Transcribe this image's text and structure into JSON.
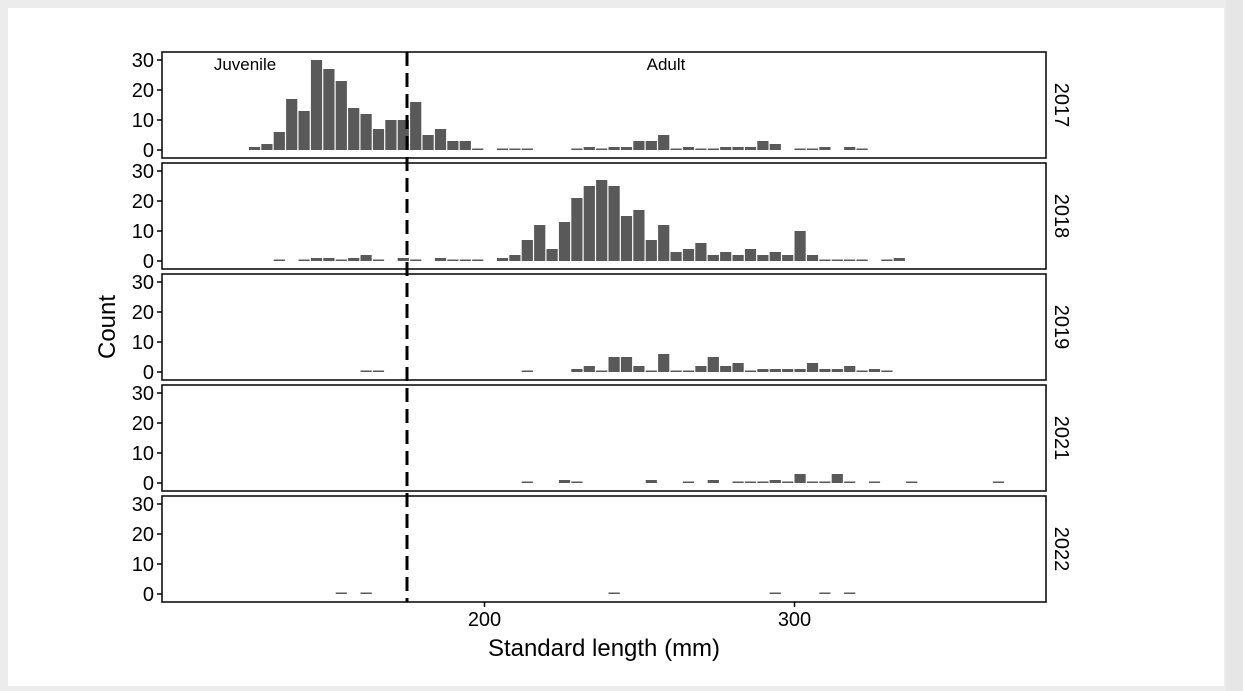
{
  "chart_data": {
    "type": "bar",
    "xlabel": "Standard length (mm)",
    "ylabel": "Count",
    "xlim": [
      100,
      380
    ],
    "ylim": [
      0,
      32
    ],
    "x_ticks": [
      200,
      300
    ],
    "y_ticks": [
      0,
      10,
      20,
      30
    ],
    "bin_width": 4,
    "threshold": 175,
    "region_labels": [
      "Juvenile",
      "Adult"
    ],
    "bar_color": "#595959",
    "grid": false,
    "panels": [
      {
        "name": "2017",
        "bars": [
          {
            "x": 126,
            "y": 1
          },
          {
            "x": 130,
            "y": 2
          },
          {
            "x": 134,
            "y": 6
          },
          {
            "x": 138,
            "y": 17
          },
          {
            "x": 142,
            "y": 13
          },
          {
            "x": 146,
            "y": 30
          },
          {
            "x": 150,
            "y": 27
          },
          {
            "x": 154,
            "y": 23
          },
          {
            "x": 158,
            "y": 14
          },
          {
            "x": 162,
            "y": 12
          },
          {
            "x": 166,
            "y": 7
          },
          {
            "x": 170,
            "y": 10
          },
          {
            "x": 174,
            "y": 10
          },
          {
            "x": 178,
            "y": 16
          },
          {
            "x": 182,
            "y": 5
          },
          {
            "x": 186,
            "y": 7
          },
          {
            "x": 190,
            "y": 3
          },
          {
            "x": 194,
            "y": 3
          },
          {
            "x": 198,
            "y": 0
          },
          {
            "x": 206,
            "y": 0
          },
          {
            "x": 210,
            "y": 0
          },
          {
            "x": 214,
            "y": 0
          },
          {
            "x": 230,
            "y": 0
          },
          {
            "x": 234,
            "y": 1
          },
          {
            "x": 238,
            "y": 0
          },
          {
            "x": 242,
            "y": 1
          },
          {
            "x": 246,
            "y": 1
          },
          {
            "x": 250,
            "y": 3
          },
          {
            "x": 254,
            "y": 3
          },
          {
            "x": 258,
            "y": 5
          },
          {
            "x": 262,
            "y": 0
          },
          {
            "x": 266,
            "y": 1
          },
          {
            "x": 270,
            "y": 0
          },
          {
            "x": 274,
            "y": 0
          },
          {
            "x": 278,
            "y": 1
          },
          {
            "x": 282,
            "y": 1
          },
          {
            "x": 286,
            "y": 1
          },
          {
            "x": 290,
            "y": 3
          },
          {
            "x": 294,
            "y": 2
          },
          {
            "x": 302,
            "y": 0
          },
          {
            "x": 306,
            "y": 0
          },
          {
            "x": 310,
            "y": 1
          },
          {
            "x": 318,
            "y": 1
          },
          {
            "x": 322,
            "y": 0
          }
        ]
      },
      {
        "name": "2018",
        "bars": [
          {
            "x": 134,
            "y": 0
          },
          {
            "x": 142,
            "y": 0
          },
          {
            "x": 146,
            "y": 1
          },
          {
            "x": 150,
            "y": 1
          },
          {
            "x": 154,
            "y": 0
          },
          {
            "x": 158,
            "y": 1
          },
          {
            "x": 162,
            "y": 2
          },
          {
            "x": 166,
            "y": 0
          },
          {
            "x": 174,
            "y": 1
          },
          {
            "x": 178,
            "y": 0
          },
          {
            "x": 186,
            "y": 1
          },
          {
            "x": 190,
            "y": 0
          },
          {
            "x": 194,
            "y": 0
          },
          {
            "x": 198,
            "y": 0
          },
          {
            "x": 206,
            "y": 1
          },
          {
            "x": 210,
            "y": 2
          },
          {
            "x": 214,
            "y": 7
          },
          {
            "x": 218,
            "y": 12
          },
          {
            "x": 222,
            "y": 4
          },
          {
            "x": 226,
            "y": 13
          },
          {
            "x": 230,
            "y": 21
          },
          {
            "x": 234,
            "y": 25
          },
          {
            "x": 238,
            "y": 27
          },
          {
            "x": 242,
            "y": 25
          },
          {
            "x": 246,
            "y": 15
          },
          {
            "x": 250,
            "y": 17
          },
          {
            "x": 254,
            "y": 7
          },
          {
            "x": 258,
            "y": 12
          },
          {
            "x": 262,
            "y": 3
          },
          {
            "x": 266,
            "y": 4
          },
          {
            "x": 270,
            "y": 6
          },
          {
            "x": 274,
            "y": 2
          },
          {
            "x": 278,
            "y": 3
          },
          {
            "x": 282,
            "y": 2
          },
          {
            "x": 286,
            "y": 4
          },
          {
            "x": 290,
            "y": 2
          },
          {
            "x": 294,
            "y": 3
          },
          {
            "x": 298,
            "y": 2
          },
          {
            "x": 302,
            "y": 10
          },
          {
            "x": 306,
            "y": 2
          },
          {
            "x": 310,
            "y": 0
          },
          {
            "x": 314,
            "y": 0
          },
          {
            "x": 318,
            "y": 0
          },
          {
            "x": 322,
            "y": 0
          },
          {
            "x": 330,
            "y": 0
          },
          {
            "x": 334,
            "y": 1
          }
        ]
      },
      {
        "name": "2019",
        "bars": [
          {
            "x": 162,
            "y": 0
          },
          {
            "x": 166,
            "y": 0
          },
          {
            "x": 214,
            "y": 0
          },
          {
            "x": 230,
            "y": 1
          },
          {
            "x": 234,
            "y": 2
          },
          {
            "x": 238,
            "y": 0
          },
          {
            "x": 242,
            "y": 5
          },
          {
            "x": 246,
            "y": 5
          },
          {
            "x": 250,
            "y": 2
          },
          {
            "x": 254,
            "y": 0
          },
          {
            "x": 258,
            "y": 6
          },
          {
            "x": 262,
            "y": 0
          },
          {
            "x": 266,
            "y": 0
          },
          {
            "x": 270,
            "y": 2
          },
          {
            "x": 274,
            "y": 5
          },
          {
            "x": 278,
            "y": 2
          },
          {
            "x": 282,
            "y": 3
          },
          {
            "x": 286,
            "y": 0
          },
          {
            "x": 290,
            "y": 1
          },
          {
            "x": 294,
            "y": 1
          },
          {
            "x": 298,
            "y": 1
          },
          {
            "x": 302,
            "y": 1
          },
          {
            "x": 306,
            "y": 3
          },
          {
            "x": 310,
            "y": 1
          },
          {
            "x": 314,
            "y": 1
          },
          {
            "x": 318,
            "y": 2
          },
          {
            "x": 322,
            "y": 0
          },
          {
            "x": 326,
            "y": 1
          },
          {
            "x": 330,
            "y": 0
          }
        ]
      },
      {
        "name": "2021",
        "bars": [
          {
            "x": 214,
            "y": 0
          },
          {
            "x": 226,
            "y": 1
          },
          {
            "x": 230,
            "y": 0
          },
          {
            "x": 254,
            "y": 1
          },
          {
            "x": 266,
            "y": 0
          },
          {
            "x": 274,
            "y": 1
          },
          {
            "x": 282,
            "y": 0
          },
          {
            "x": 286,
            "y": 0
          },
          {
            "x": 290,
            "y": 0
          },
          {
            "x": 294,
            "y": 1
          },
          {
            "x": 298,
            "y": 0
          },
          {
            "x": 302,
            "y": 3
          },
          {
            "x": 306,
            "y": 0
          },
          {
            "x": 310,
            "y": 0
          },
          {
            "x": 314,
            "y": 3
          },
          {
            "x": 318,
            "y": 0
          },
          {
            "x": 326,
            "y": 0
          },
          {
            "x": 338,
            "y": 0
          },
          {
            "x": 366,
            "y": 0
          }
        ]
      },
      {
        "name": "2022",
        "bars": [
          {
            "x": 154,
            "y": 0
          },
          {
            "x": 162,
            "y": 0
          },
          {
            "x": 242,
            "y": 0
          },
          {
            "x": 294,
            "y": 0
          },
          {
            "x": 310,
            "y": 0
          },
          {
            "x": 318,
            "y": 0
          }
        ]
      }
    ]
  }
}
